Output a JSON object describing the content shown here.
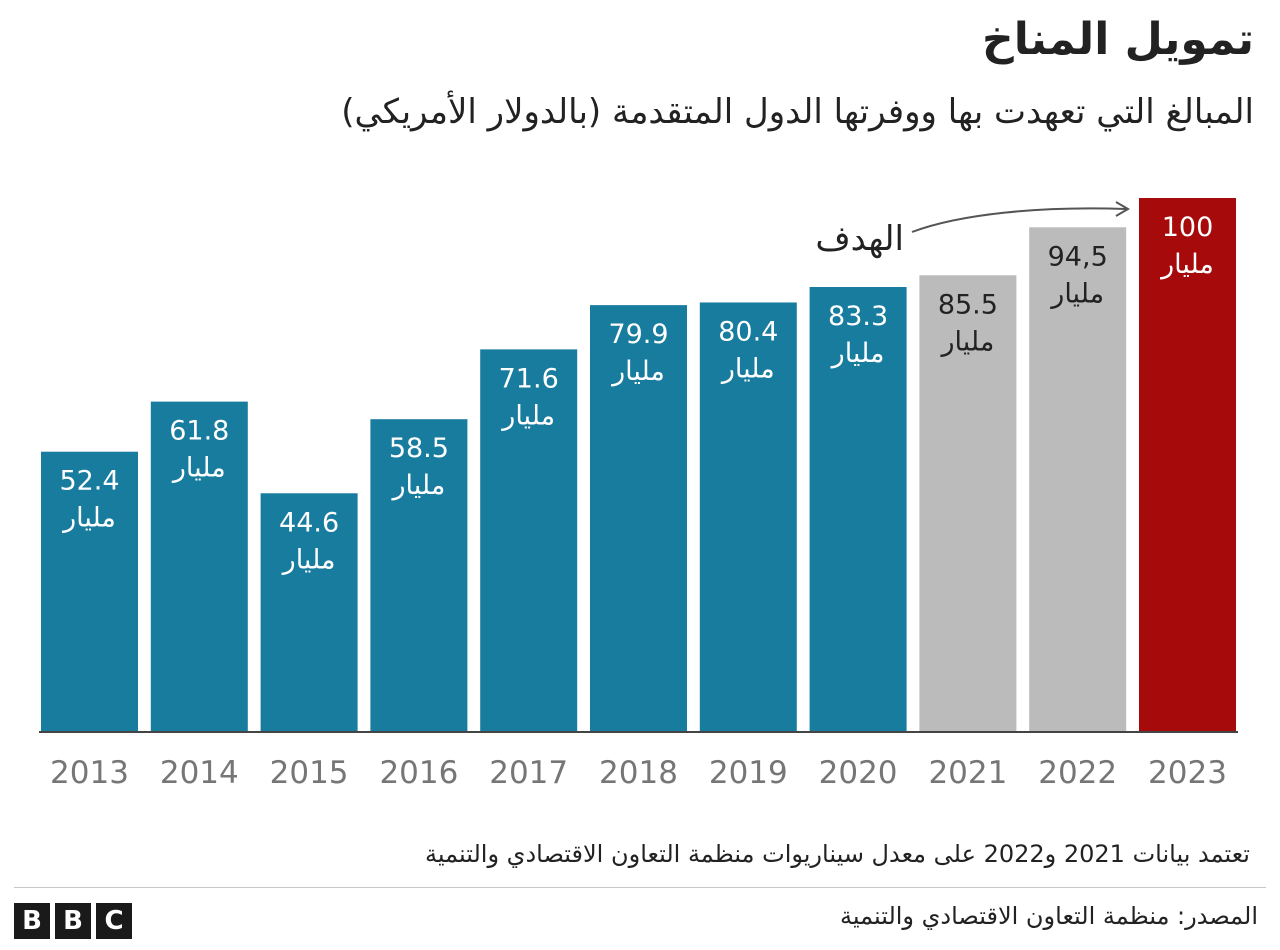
{
  "title": "تمويل المناخ",
  "subtitle": "المبالغ التي تعهدت بها ووفرتها الدول المتقدمة (بالدولار الأمريكي)",
  "note": "تعتمد بيانات 2021 و2022 على معدل سيناريوات منظمة التعاون الاقتصادي والتنمية",
  "source": "المصدر: منظمة التعاون الاقتصادي والتنمية",
  "logo": [
    "B",
    "B",
    "C"
  ],
  "colors": {
    "actual": "#187c9f",
    "estimate": "#bbbbbb",
    "target": "#a60a0a",
    "label_light": "#ffffff",
    "label_dark": "#222222"
  },
  "chart_data": {
    "type": "bar",
    "categories": [
      "2013",
      "2014",
      "2015",
      "2016",
      "2017",
      "2018",
      "2019",
      "2020",
      "2021",
      "2022",
      "2023"
    ],
    "values": [
      52.4,
      61.8,
      44.6,
      58.5,
      71.6,
      79.9,
      80.4,
      83.3,
      85.5,
      94.5,
      100
    ],
    "value_labels": [
      "52.4",
      "61.8",
      "44.6",
      "58.5",
      "71.6",
      "79.9",
      "80.4",
      "83.3",
      "85.5",
      "94,5",
      "100"
    ],
    "unit_label": "مليار",
    "kinds": [
      "actual",
      "actual",
      "actual",
      "actual",
      "actual",
      "actual",
      "actual",
      "actual",
      "estimate",
      "estimate",
      "target"
    ],
    "annotation": "الهدف",
    "ylim": [
      0,
      100
    ],
    "grid": false,
    "legend": "none"
  }
}
